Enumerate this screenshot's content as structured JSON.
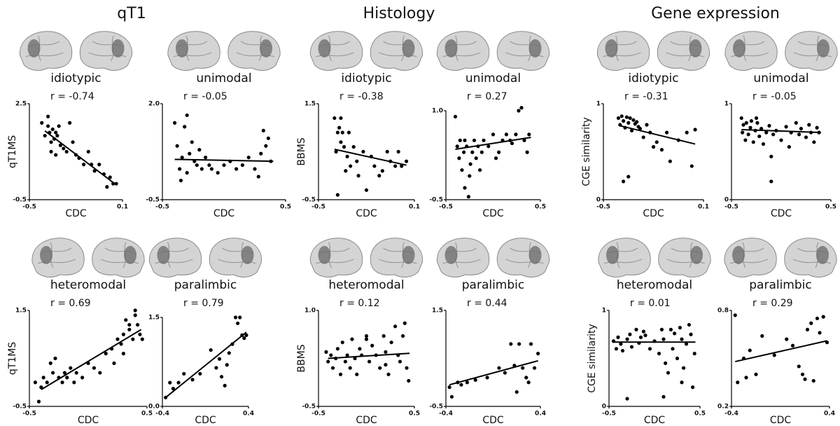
{
  "column_titles": [
    "qT1",
    "Histology",
    "Gene expression"
  ],
  "chart_data": [
    {
      "type": "scatter",
      "label": "idiotypic",
      "annotation": "r = -0.74",
      "x_label": "CDC",
      "y_label": "qT1MS",
      "color": "#000000",
      "xlim": [
        -0.5,
        0.1
      ],
      "ylim": [
        -0.5,
        2.5
      ],
      "xticks": [
        -0.5,
        0.1
      ],
      "yticks": [
        -0.5,
        2.5
      ],
      "x": [
        -0.42,
        -0.4,
        -0.38,
        -0.37,
        -0.36,
        -0.35,
        -0.34,
        -0.33,
        -0.32,
        -0.31,
        -0.3,
        -0.28,
        -0.26,
        -0.24,
        -0.22,
        -0.2,
        -0.18,
        -0.15,
        -0.12,
        -0.1,
        -0.08,
        -0.05,
        -0.02,
        0.0,
        0.02,
        0.04,
        0.06,
        -0.36,
        -0.38,
        -0.33
      ],
      "y": [
        1.9,
        1.5,
        2.1,
        1.6,
        1.3,
        1.7,
        1.4,
        0.9,
        1.5,
        1.8,
        1.2,
        1.1,
        1.0,
        1.9,
        1.3,
        0.9,
        0.8,
        0.6,
        1.0,
        0.6,
        0.4,
        0.6,
        0.3,
        -0.1,
        0.2,
        0.0,
        0.0,
        1.0,
        1.8,
        1.6
      ],
      "fit_x": [
        -0.4,
        0.05
      ],
      "fit_y": [
        1.65,
        0.0
      ]
    },
    {
      "type": "scatter",
      "label": "unimodal",
      "annotation": "r = -0.05",
      "x_label": "CDC",
      "color": "#000000",
      "xlim": [
        -0.5,
        0.5
      ],
      "ylim": [
        -0.5,
        2.0
      ],
      "xticks": [
        -0.5,
        0.5
      ],
      "yticks": [
        -0.5,
        {
          "value": 2,
          "label": "2.0"
        }
      ],
      "x": [
        -0.4,
        -0.38,
        -0.36,
        -0.34,
        -0.32,
        -0.3,
        -0.28,
        -0.26,
        -0.24,
        -0.22,
        -0.2,
        -0.18,
        -0.15,
        -0.12,
        -0.1,
        -0.05,
        0.0,
        0.05,
        0.1,
        0.15,
        0.2,
        0.25,
        0.28,
        0.3,
        0.32,
        0.34,
        0.36,
        0.38,
        -0.35,
        -0.3
      ],
      "y": [
        1.5,
        0.9,
        0.3,
        0.6,
        1.4,
        0.2,
        0.7,
        1.0,
        0.5,
        0.4,
        0.8,
        0.3,
        0.6,
        0.4,
        0.3,
        0.2,
        0.4,
        0.5,
        0.3,
        0.4,
        0.6,
        0.3,
        0.1,
        0.7,
        1.3,
        0.9,
        1.1,
        0.5,
        0.0,
        1.7
      ],
      "fit_x": [
        -0.4,
        0.4
      ],
      "fit_y": [
        0.55,
        0.5
      ]
    },
    {
      "type": "scatter",
      "label": "idiotypic",
      "annotation": "r = -0.38",
      "x_label": "CDC",
      "y_label": "BBMS",
      "color": "#000000",
      "xlim": [
        -0.5,
        0.1
      ],
      "ylim": [
        -0.5,
        1.5
      ],
      "xticks": [
        -0.5,
        0.1
      ],
      "yticks": [
        -0.5,
        1.5
      ],
      "x": [
        -0.4,
        -0.39,
        -0.38,
        -0.37,
        -0.36,
        -0.35,
        -0.34,
        -0.33,
        -0.32,
        -0.31,
        -0.3,
        -0.28,
        -0.26,
        -0.25,
        -0.22,
        -0.2,
        -0.17,
        -0.15,
        -0.12,
        -0.1,
        -0.07,
        -0.05,
        -0.02,
        0.0,
        0.02,
        0.05,
        -0.38,
        -0.36
      ],
      "y": [
        1.2,
        0.5,
        -0.4,
        1.0,
        0.7,
        0.9,
        0.6,
        0.1,
        0.4,
        0.9,
        0.2,
        0.6,
        0.3,
        0.0,
        0.5,
        -0.3,
        0.4,
        0.2,
        0.0,
        0.1,
        0.5,
        0.3,
        0.2,
        0.5,
        0.2,
        0.3,
        0.9,
        1.2
      ],
      "fit_x": [
        -0.4,
        0.05
      ],
      "fit_y": [
        0.55,
        0.22
      ]
    },
    {
      "type": "scatter",
      "label": "unimodal",
      "annotation": "r = 0.27",
      "x_label": "CDC",
      "color": "#000000",
      "xlim": [
        -0.5,
        0.5
      ],
      "ylim": [
        -0.5,
        1.0
      ],
      "xticks": [
        -0.5,
        0.5
      ],
      "yticks": [
        -0.5,
        {
          "value": 1,
          "label": "1.0"
        }
      ],
      "x": [
        -0.4,
        -0.38,
        -0.36,
        -0.35,
        -0.33,
        -0.31,
        -0.3,
        -0.28,
        -0.26,
        -0.24,
        -0.22,
        -0.2,
        -0.18,
        -0.16,
        -0.14,
        -0.12,
        -0.1,
        -0.05,
        0.0,
        0.03,
        0.06,
        0.1,
        0.14,
        0.18,
        0.2,
        0.24,
        0.27,
        0.3,
        0.33,
        0.36,
        0.38,
        -0.25,
        -0.3
      ],
      "y": [
        0.9,
        0.4,
        0.2,
        0.5,
        0.0,
        0.3,
        -0.3,
        0.4,
        -0.45,
        0.1,
        0.3,
        0.5,
        0.2,
        0.4,
        0.0,
        0.3,
        0.5,
        0.4,
        0.6,
        0.2,
        0.3,
        0.5,
        0.6,
        0.5,
        0.45,
        0.6,
        1.0,
        1.05,
        0.5,
        0.3,
        0.6,
        -0.1,
        0.5
      ],
      "fit_x": [
        -0.4,
        0.4
      ],
      "fit_y": [
        0.35,
        0.55
      ]
    },
    {
      "type": "scatter",
      "label": "idiotypic",
      "annotation": "r = -0.31",
      "x_label": "CDC",
      "y_label": "CGE similarity",
      "color": "#000000",
      "xlim": [
        -0.5,
        0.1
      ],
      "ylim": [
        0,
        1
      ],
      "xticks": [
        -0.5,
        0.1
      ],
      "yticks": [
        0,
        1
      ],
      "x": [
        -0.41,
        -0.4,
        -0.39,
        -0.38,
        -0.37,
        -0.36,
        -0.35,
        -0.34,
        -0.33,
        -0.32,
        -0.31,
        -0.3,
        -0.29,
        -0.28,
        -0.26,
        -0.24,
        -0.22,
        -0.2,
        -0.18,
        -0.15,
        -0.12,
        -0.1,
        -0.05,
        0.0,
        0.03,
        0.05,
        -0.38,
        -0.35
      ],
      "y": [
        0.85,
        0.78,
        0.87,
        0.82,
        0.75,
        0.86,
        0.8,
        0.85,
        0.72,
        0.83,
        0.79,
        0.81,
        0.76,
        0.74,
        0.65,
        0.78,
        0.7,
        0.55,
        0.6,
        0.52,
        0.7,
        0.4,
        0.62,
        0.7,
        0.35,
        0.73,
        0.19,
        0.24
      ],
      "fit_x": [
        -0.4,
        0.05
      ],
      "fit_y": [
        0.77,
        0.58
      ]
    },
    {
      "type": "scatter",
      "label": "unimodal",
      "annotation": "r = -0.05",
      "x_label": "CDC",
      "color": "#000000",
      "xlim": [
        -0.5,
        0.5
      ],
      "ylim": [
        0,
        1
      ],
      "xticks": [
        -0.5,
        0.5
      ],
      "yticks": [
        0,
        1
      ],
      "x": [
        -0.4,
        -0.39,
        -0.38,
        -0.36,
        -0.35,
        -0.33,
        -0.31,
        -0.3,
        -0.28,
        -0.26,
        -0.24,
        -0.22,
        -0.2,
        -0.18,
        -0.15,
        -0.12,
        -0.1,
        -0.08,
        -0.05,
        0.0,
        0.05,
        0.08,
        0.1,
        0.15,
        0.18,
        0.2,
        0.25,
        0.28,
        0.3,
        0.33,
        0.36,
        0.38,
        -0.25,
        -0.1
      ],
      "y": [
        0.85,
        0.7,
        0.78,
        0.62,
        0.8,
        0.68,
        0.75,
        0.82,
        0.6,
        0.72,
        0.8,
        0.66,
        0.74,
        0.58,
        0.7,
        0.77,
        0.45,
        0.68,
        0.72,
        0.62,
        0.76,
        0.55,
        0.7,
        0.8,
        0.68,
        0.74,
        0.65,
        0.78,
        0.7,
        0.6,
        0.75,
        0.7,
        0.85,
        0.19
      ],
      "fit_x": [
        -0.4,
        0.4
      ],
      "fit_y": [
        0.73,
        0.7
      ]
    },
    {
      "type": "scatter",
      "label": "heteromodal",
      "annotation": "r = 0.69",
      "x_label": "CDC",
      "y_label": "qT1MS",
      "color": "#000000",
      "xlim": [
        -0.5,
        0.5
      ],
      "ylim": [
        -0.5,
        1.5
      ],
      "xticks": [
        -0.5,
        0.5
      ],
      "yticks": [
        -0.5,
        1.5
      ],
      "x": [
        -0.45,
        -0.42,
        -0.4,
        -0.38,
        -0.35,
        -0.32,
        -0.3,
        -0.28,
        -0.25,
        -0.22,
        -0.2,
        -0.18,
        -0.15,
        -0.12,
        -0.1,
        -0.05,
        0.0,
        0.05,
        0.1,
        0.15,
        0.2,
        0.22,
        0.25,
        0.28,
        0.3,
        0.32,
        0.35,
        0.38,
        0.4,
        0.42,
        0.44,
        0.46,
        0.3,
        0.35,
        0.4
      ],
      "y": [
        0.0,
        -0.4,
        -0.1,
        0.1,
        0.0,
        0.4,
        0.2,
        0.5,
        0.1,
        0.0,
        0.2,
        0.1,
        0.3,
        0.0,
        0.2,
        0.1,
        0.4,
        0.3,
        0.2,
        0.6,
        0.7,
        0.4,
        0.9,
        0.8,
        1.0,
        1.3,
        1.1,
        0.9,
        1.4,
        1.2,
        1.0,
        0.9,
        0.6,
        1.2,
        1.5
      ],
      "fit_x": [
        -0.4,
        0.45
      ],
      "fit_y": [
        -0.15,
        1.1
      ]
    },
    {
      "type": "scatter",
      "label": "paralimbic",
      "annotation": "r = 0.79",
      "x_label": "CDC",
      "color": "#000000",
      "xlim": [
        -0.4,
        0.4
      ],
      "ylim": [
        0,
        1.5
      ],
      "xticks": [
        -0.4,
        0.4
      ],
      "yticks": [
        {
          "value": 0,
          "label": "0.0"
        },
        1.5
      ],
      "x": [
        -0.37,
        -0.33,
        -0.3,
        -0.25,
        -0.2,
        -0.12,
        -0.05,
        0.05,
        0.1,
        0.13,
        0.15,
        0.18,
        0.2,
        0.22,
        0.25,
        0.28,
        0.3,
        0.32,
        0.34,
        0.36,
        0.38
      ],
      "y": [
        0.15,
        0.4,
        0.3,
        0.4,
        0.55,
        0.45,
        0.55,
        0.95,
        0.65,
        0.8,
        0.5,
        0.35,
        0.7,
        0.9,
        1.05,
        1.5,
        1.4,
        1.5,
        1.2,
        1.15,
        1.2
      ],
      "fit_x": [
        -0.37,
        0.38
      ],
      "fit_y": [
        0.15,
        1.25
      ]
    },
    {
      "type": "scatter",
      "label": "heteromodal",
      "annotation": "r = 0.12",
      "x_label": "CDC",
      "y_label": "BBMS",
      "color": "#000000",
      "xlim": [
        -0.5,
        0.5
      ],
      "ylim": [
        -0.5,
        1.0
      ],
      "xticks": [
        -0.5,
        0.5
      ],
      "yticks": [
        -0.5,
        {
          "value": 1,
          "label": "1.0"
        }
      ],
      "x": [
        -0.42,
        -0.4,
        -0.37,
        -0.35,
        -0.32,
        -0.3,
        -0.27,
        -0.25,
        -0.22,
        -0.2,
        -0.17,
        -0.15,
        -0.12,
        -0.1,
        -0.07,
        -0.05,
        0.0,
        0.03,
        0.06,
        0.1,
        0.14,
        0.18,
        0.2,
        0.23,
        0.26,
        0.3,
        0.33,
        0.35,
        0.38,
        0.4,
        0.42,
        0.44,
        0.0,
        0.2
      ],
      "y": [
        0.35,
        0.2,
        0.3,
        0.1,
        0.25,
        0.4,
        0.0,
        0.5,
        0.2,
        0.3,
        0.1,
        0.55,
        0.25,
        0.0,
        0.4,
        0.3,
        0.6,
        0.2,
        0.45,
        0.3,
        0.1,
        0.6,
        0.35,
        0.0,
        0.5,
        0.75,
        0.3,
        0.2,
        0.6,
        0.8,
        0.1,
        -0.1,
        0.55,
        0.15
      ],
      "fit_x": [
        -0.4,
        0.45
      ],
      "fit_y": [
        0.25,
        0.33
      ]
    },
    {
      "type": "scatter",
      "label": "paralimbic",
      "annotation": "r = 0.44",
      "x_label": "CDC",
      "color": "#000000",
      "xlim": [
        -0.4,
        0.4
      ],
      "ylim": [
        -0.5,
        1.5
      ],
      "xticks": [
        -0.4,
        0.4
      ],
      "yticks": [
        -0.5,
        1.5
      ],
      "x": [
        -0.37,
        -0.35,
        -0.3,
        -0.27,
        -0.22,
        -0.15,
        -0.05,
        0.05,
        0.1,
        0.15,
        0.18,
        0.2,
        0.22,
        0.25,
        0.28,
        0.3,
        0.32,
        0.35,
        0.38
      ],
      "y": [
        -0.1,
        -0.3,
        0.0,
        -0.05,
        0.0,
        0.05,
        0.1,
        0.3,
        0.2,
        0.8,
        0.35,
        -0.2,
        0.8,
        0.3,
        0.1,
        0.0,
        0.8,
        0.3,
        0.6
      ],
      "fit_x": [
        -0.37,
        0.38
      ],
      "fit_y": [
        -0.05,
        0.45
      ]
    },
    {
      "type": "scatter",
      "label": "heteromodal",
      "annotation": "r = 0.01",
      "x_label": "CDC",
      "y_label": "CGE similarity",
      "color": "#000000",
      "xlim": [
        -0.5,
        0.5
      ],
      "ylim": [
        0,
        1
      ],
      "xticks": [
        -0.5,
        0.5
      ],
      "yticks": [
        0,
        1
      ],
      "x": [
        -0.45,
        -0.42,
        -0.4,
        -0.37,
        -0.35,
        -0.3,
        -0.27,
        -0.25,
        -0.2,
        -0.17,
        -0.15,
        -0.12,
        -0.1,
        -0.05,
        0.0,
        0.05,
        0.08,
        0.1,
        0.12,
        0.15,
        0.18,
        0.2,
        0.22,
        0.25,
        0.28,
        0.3,
        0.32,
        0.35,
        0.38,
        0.4,
        0.42,
        0.44,
        -0.3,
        0.1,
        0.3
      ],
      "y": [
        0.68,
        0.6,
        0.72,
        0.65,
        0.58,
        0.7,
        0.75,
        0.62,
        0.8,
        0.66,
        0.72,
        0.78,
        0.74,
        0.6,
        0.68,
        0.55,
        0.8,
        0.7,
        0.45,
        0.35,
        0.8,
        0.6,
        0.76,
        0.5,
        0.82,
        0.7,
        0.4,
        0.65,
        0.85,
        0.75,
        0.2,
        0.55,
        0.08,
        0.1,
        0.25
      ],
      "fit_x": [
        -0.45,
        0.45
      ],
      "fit_y": [
        0.67,
        0.67
      ]
    },
    {
      "type": "scatter",
      "label": "paralimbic",
      "annotation": "r = 0.29",
      "x_label": "CDC",
      "color": "#000000",
      "xlim": [
        -0.4,
        0.4
      ],
      "ylim": [
        0.2,
        0.8
      ],
      "xticks": [
        -0.4,
        0.4
      ],
      "yticks": [
        0.2,
        0.8
      ],
      "x": [
        -0.37,
        -0.35,
        -0.3,
        -0.28,
        -0.25,
        -0.2,
        -0.15,
        -0.05,
        0.05,
        0.1,
        0.15,
        0.18,
        0.2,
        0.22,
        0.25,
        0.27,
        0.3,
        0.32,
        0.35,
        0.38
      ],
      "y": [
        0.77,
        0.35,
        0.5,
        0.38,
        0.55,
        0.4,
        0.64,
        0.52,
        0.62,
        0.58,
        0.45,
        0.4,
        0.37,
        0.68,
        0.72,
        0.36,
        0.75,
        0.66,
        0.76,
        0.6
      ],
      "fit_x": [
        -0.37,
        0.38
      ],
      "fit_y": [
        0.48,
        0.61
      ]
    }
  ]
}
